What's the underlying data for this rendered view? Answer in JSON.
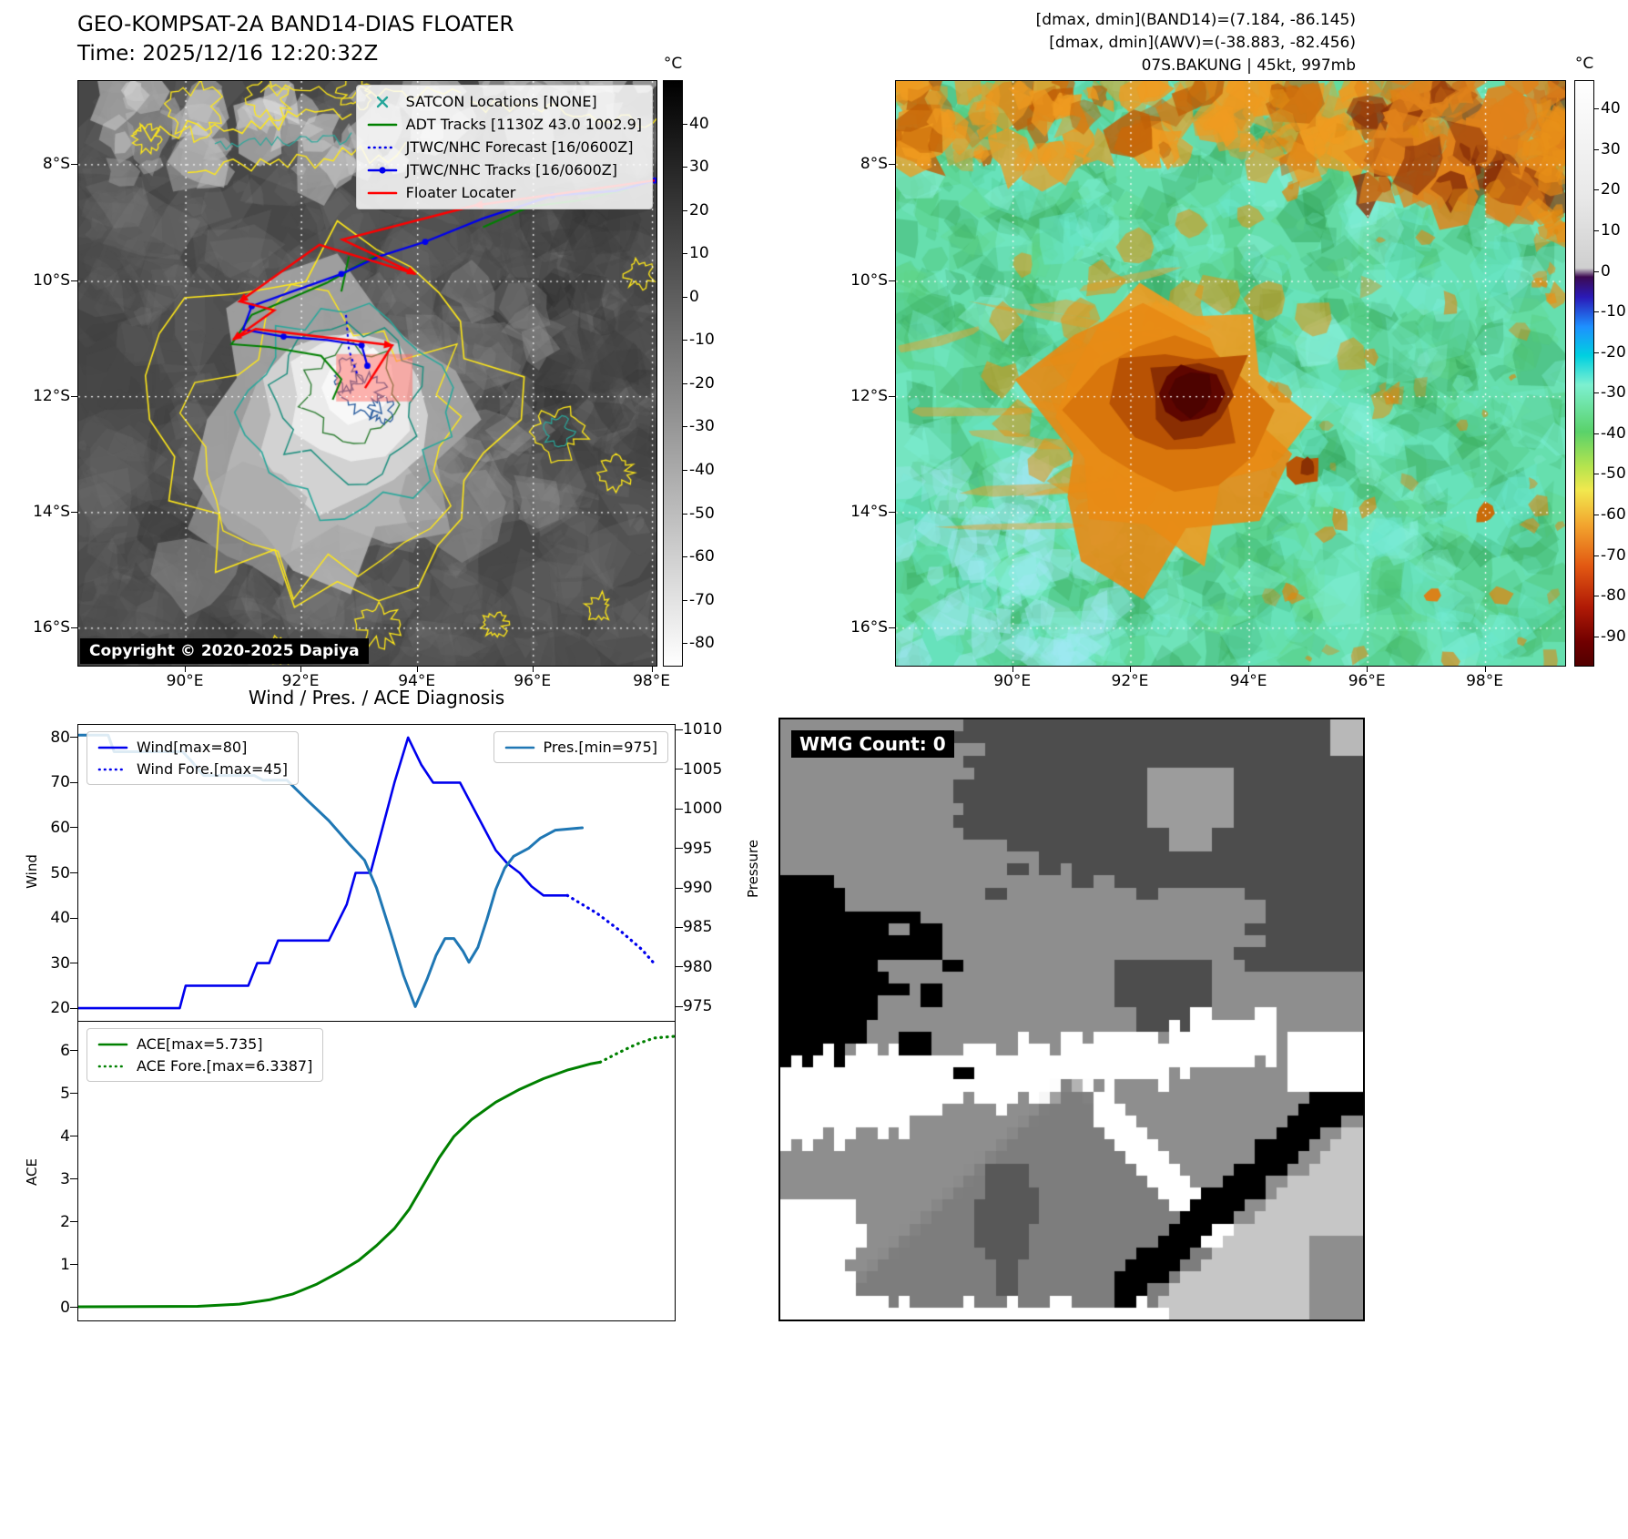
{
  "panel1": {
    "title": "GEO-KOMPSAT-2A BAND14-DIAS FLOATER",
    "time_line": "Time: 2025/12/16 12:20:32Z",
    "copyright": "Copyright © 2020-2025 Dapiya",
    "legend": [
      {
        "label": "SATCON Locations [NONE]",
        "marker": "x",
        "color": "#26a69a"
      },
      {
        "label": "ADT Tracks [1130Z 43.0 1002.9]",
        "marker": "line",
        "color": "#008000"
      },
      {
        "label": "JTWC/NHC Forecast [16/0600Z]",
        "marker": "dotted",
        "color": "#0000ee"
      },
      {
        "label": "JTWC/NHC Tracks [16/0600Z]",
        "marker": "line-dot",
        "color": "#0000ee"
      },
      {
        "label": "Floater Locater",
        "marker": "line",
        "color": "#ff0000"
      }
    ],
    "yticks": [
      "8°S",
      "10°S",
      "12°S",
      "14°S",
      "16°S"
    ],
    "xticks": [
      "90°E",
      "92°E",
      "94°E",
      "96°E",
      "98°E"
    ],
    "colorbar": {
      "unit": "°C",
      "ticks": [
        40,
        30,
        20,
        10,
        0,
        -10,
        -20,
        -30,
        -40,
        -50,
        -60,
        -70,
        -80
      ]
    }
  },
  "panel2": {
    "header": [
      "[dmax, dmin](BAND14)=(7.184, -86.145)",
      "[dmax, dmin](AWV)=(-38.883, -82.456)",
      "07S.BAKUNG | 45kt, 997mb"
    ],
    "yticks": [
      "8°S",
      "10°S",
      "12°S",
      "14°S",
      "16°S"
    ],
    "xticks": [
      "90°E",
      "92°E",
      "94°E",
      "96°E",
      "98°E"
    ],
    "colorbar": {
      "unit": "°C",
      "ticks": [
        40,
        30,
        20,
        10,
        0,
        -10,
        -20,
        -30,
        -40,
        -50,
        -60,
        -70,
        -80,
        -90
      ]
    }
  },
  "panel3": {
    "title": "Wind / Pres. / ACE Diagnosis"
  },
  "panel4": {
    "label": "WMG Count: 0"
  },
  "chart_data": [
    {
      "type": "line",
      "title": "Wind / Pres. / ACE Diagnosis",
      "ylabel": "Wind",
      "y2label": "Pressure",
      "xlim": [
        0,
        1
      ],
      "ylim": [
        17.2,
        82.8
      ],
      "y2lim": [
        973.2,
        1010.6
      ],
      "yticks": [
        20,
        30,
        40,
        50,
        60,
        70,
        80
      ],
      "y2ticks": [
        975,
        980,
        985,
        990,
        995,
        1000,
        1005,
        1010
      ],
      "series": [
        {
          "name": "Wind[max=80]",
          "color": "#0000ee",
          "style": "solid",
          "width": 2.6,
          "axis": "y",
          "points": [
            [
              0,
              20
            ],
            [
              0.17,
              20
            ],
            [
              0.18,
              25
            ],
            [
              0.285,
              25
            ],
            [
              0.3,
              30
            ],
            [
              0.32,
              30
            ],
            [
              0.335,
              35
            ],
            [
              0.42,
              35
            ],
            [
              0.45,
              43
            ],
            [
              0.465,
              50
            ],
            [
              0.49,
              50
            ],
            [
              0.51,
              60
            ],
            [
              0.53,
              70
            ],
            [
              0.553,
              80
            ],
            [
              0.575,
              74
            ],
            [
              0.595,
              70
            ],
            [
              0.64,
              70
            ],
            [
              0.68,
              60
            ],
            [
              0.7,
              55
            ],
            [
              0.72,
              52
            ],
            [
              0.74,
              50
            ],
            [
              0.76,
              47
            ],
            [
              0.78,
              45
            ],
            [
              0.82,
              45
            ]
          ]
        },
        {
          "name": "Wind Fore.[max=45]",
          "color": "#0000ee",
          "style": "dotted",
          "width": 3.2,
          "axis": "y",
          "points": [
            [
              0.82,
              45
            ],
            [
              0.87,
              41
            ],
            [
              0.91,
              37
            ],
            [
              0.945,
              33
            ],
            [
              0.965,
              30
            ]
          ]
        },
        {
          "name": "Pres.[min=975]",
          "color": "#1f77b4",
          "style": "solid",
          "width": 3,
          "axis": "y2",
          "points": [
            [
              0,
              1009.3
            ],
            [
              0.05,
              1009.3
            ],
            [
              0.06,
              1007.2
            ],
            [
              0.175,
              1007.2
            ],
            [
              0.19,
              1006
            ],
            [
              0.21,
              1004.2
            ],
            [
              0.295,
              1004.2
            ],
            [
              0.31,
              1003.6
            ],
            [
              0.35,
              1003.6
            ],
            [
              0.385,
              1001
            ],
            [
              0.42,
              998.5
            ],
            [
              0.455,
              995.5
            ],
            [
              0.48,
              993.5
            ],
            [
              0.5,
              990
            ],
            [
              0.525,
              984
            ],
            [
              0.545,
              979
            ],
            [
              0.565,
              975
            ],
            [
              0.585,
              978.5
            ],
            [
              0.6,
              981.5
            ],
            [
              0.615,
              983.6
            ],
            [
              0.63,
              983.6
            ],
            [
              0.645,
              982
            ],
            [
              0.655,
              980.6
            ],
            [
              0.67,
              982.5
            ],
            [
              0.685,
              986
            ],
            [
              0.7,
              989.8
            ],
            [
              0.715,
              992.5
            ],
            [
              0.73,
              994
            ],
            [
              0.755,
              995
            ],
            [
              0.775,
              996.3
            ],
            [
              0.8,
              997.3
            ],
            [
              0.845,
              997.6
            ]
          ]
        }
      ]
    },
    {
      "type": "line",
      "ylabel": "ACE",
      "xlim": [
        0,
        1
      ],
      "ylim": [
        -0.3,
        6.68
      ],
      "yticks": [
        0,
        1,
        2,
        3,
        4,
        5,
        6
      ],
      "series": [
        {
          "name": "ACE[max=5.735]",
          "color": "#008000",
          "style": "solid",
          "width": 3,
          "axis": "y",
          "points": [
            [
              0,
              0.02
            ],
            [
              0.2,
              0.03
            ],
            [
              0.27,
              0.08
            ],
            [
              0.32,
              0.18
            ],
            [
              0.36,
              0.32
            ],
            [
              0.4,
              0.55
            ],
            [
              0.44,
              0.85
            ],
            [
              0.47,
              1.1
            ],
            [
              0.5,
              1.45
            ],
            [
              0.53,
              1.85
            ],
            [
              0.555,
              2.3
            ],
            [
              0.58,
              2.9
            ],
            [
              0.605,
              3.5
            ],
            [
              0.63,
              4.0
            ],
            [
              0.66,
              4.4
            ],
            [
              0.7,
              4.8
            ],
            [
              0.74,
              5.1
            ],
            [
              0.78,
              5.35
            ],
            [
              0.82,
              5.55
            ],
            [
              0.86,
              5.7
            ],
            [
              0.875,
              5.735
            ]
          ]
        },
        {
          "name": "ACE Fore.[max=6.3387]",
          "color": "#008000",
          "style": "dotted",
          "width": 3.2,
          "axis": "y",
          "points": [
            [
              0.875,
              5.735
            ],
            [
              0.905,
              5.95
            ],
            [
              0.935,
              6.15
            ],
            [
              0.965,
              6.3
            ],
            [
              1,
              6.3387
            ]
          ]
        }
      ]
    }
  ]
}
